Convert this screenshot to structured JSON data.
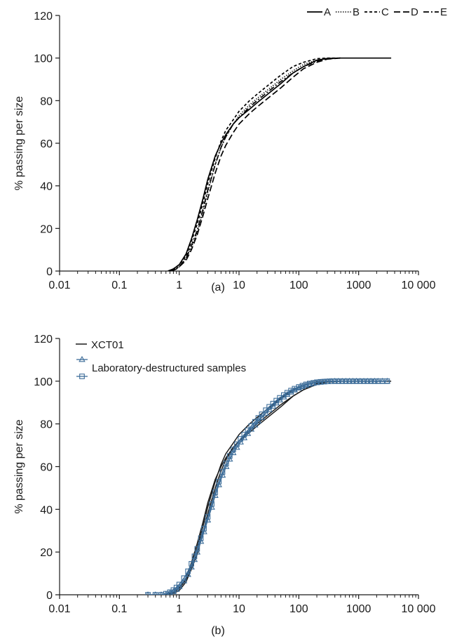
{
  "chart_data": [
    {
      "type": "line",
      "panel_label": "(a)",
      "title": "",
      "xlabel": "",
      "ylabel": "% passing per size",
      "xscale": "log",
      "xlim": [
        0.01,
        10000
      ],
      "ylim": [
        0,
        120
      ],
      "xticks": [
        0.01,
        0.1,
        1,
        10,
        100,
        1000,
        10000
      ],
      "xtick_labels": [
        "0.01",
        "0.1",
        "1",
        "10",
        "100",
        "1000",
        "10 000"
      ],
      "yticks": [
        0,
        20,
        40,
        60,
        80,
        100,
        120
      ],
      "ytick_labels": [
        "0",
        "20",
        "40",
        "60",
        "80",
        "100",
        "120"
      ],
      "grid": false,
      "legend": "top-right",
      "series": [
        {
          "name": "A",
          "dash": "solid",
          "color": "#000000",
          "x": [
            0.65,
            0.8,
            1,
            1.3,
            1.6,
            2,
            2.5,
            3,
            4,
            5,
            6,
            8,
            10,
            15,
            20,
            30,
            50,
            80,
            120,
            200,
            300,
            500,
            1000,
            3500
          ],
          "y": [
            0,
            1,
            3,
            8,
            15,
            24,
            34,
            43,
            54,
            60,
            64,
            69,
            72,
            76,
            79,
            83,
            88,
            93,
            96,
            99,
            99.8,
            100,
            100,
            100
          ]
        },
        {
          "name": "B",
          "dash": "dotted",
          "color": "#000000",
          "x": [
            0.7,
            0.85,
            1,
            1.3,
            1.6,
            2,
            2.5,
            3,
            4,
            5,
            6,
            8,
            10,
            15,
            20,
            30,
            50,
            80,
            120,
            200,
            300,
            500
          ],
          "y": [
            0,
            1,
            2,
            6,
            11,
            18,
            28,
            37,
            50,
            58,
            63,
            69,
            73,
            78,
            81,
            85,
            90,
            94,
            97,
            99,
            99.8,
            100
          ]
        },
        {
          "name": "C",
          "dash": "short-dash",
          "color": "#000000",
          "x": [
            0.65,
            0.8,
            1,
            1.3,
            1.6,
            2,
            2.5,
            3,
            4,
            5,
            6,
            8,
            10,
            15,
            20,
            30,
            50,
            80,
            120,
            200,
            300,
            500
          ],
          "y": [
            0,
            1,
            3,
            7,
            14,
            22,
            32,
            41,
            53,
            61,
            66,
            71,
            75,
            80,
            83,
            87,
            92,
            96,
            98,
            99.7,
            100,
            100
          ]
        },
        {
          "name": "D",
          "dash": "long-dash",
          "color": "#000000",
          "x": [
            0.75,
            0.9,
            1,
            1.3,
            1.6,
            2,
            2.5,
            3,
            4,
            5,
            6,
            8,
            10,
            15,
            20,
            30,
            50,
            80,
            120,
            200,
            300,
            500
          ],
          "y": [
            0,
            1,
            2,
            5,
            10,
            17,
            26,
            34,
            46,
            54,
            59,
            65,
            69,
            74,
            77,
            81,
            86,
            91,
            95,
            98,
            99.5,
            100
          ]
        },
        {
          "name": "E",
          "dash": "dash-dot",
          "color": "#000000",
          "x": [
            0.7,
            0.85,
            1,
            1.3,
            1.6,
            2,
            2.5,
            3,
            4,
            5,
            6,
            8,
            10,
            15,
            20,
            30,
            50,
            80,
            120,
            200,
            300,
            500
          ],
          "y": [
            0,
            1,
            2,
            6,
            12,
            19,
            29,
            38,
            50,
            58,
            63,
            69,
            72,
            77,
            80,
            84,
            89,
            93,
            96,
            98.5,
            99.6,
            100
          ]
        }
      ]
    },
    {
      "type": "line",
      "panel_label": "(b)",
      "title": "",
      "xlabel": "",
      "ylabel": "% passing per size",
      "xscale": "log",
      "xlim": [
        0.01,
        10000
      ],
      "ylim": [
        0,
        120
      ],
      "xticks": [
        0.01,
        0.1,
        1,
        10,
        100,
        1000,
        10000
      ],
      "xtick_labels": [
        "0.01",
        "0.1",
        "1",
        "10",
        "100",
        "1000",
        "10 000"
      ],
      "yticks": [
        0,
        20,
        40,
        60,
        80,
        100,
        120
      ],
      "ytick_labels": [
        "0",
        "20",
        "40",
        "60",
        "80",
        "100",
        "120"
      ],
      "grid": false,
      "legend": "top-left",
      "legend_entries": [
        "XCT01",
        "Laboratory-destructured samples"
      ],
      "series": [
        {
          "name": "XCT01",
          "color": "#1a1a1a",
          "marker": "none",
          "x": [
            0.65,
            0.8,
            1,
            1.3,
            1.6,
            2,
            2.5,
            3,
            4,
            5,
            6,
            8,
            10,
            15,
            20,
            30,
            50,
            80,
            120,
            200,
            300,
            500,
            1000,
            3500
          ],
          "y": [
            0,
            1,
            3,
            8,
            15,
            24,
            34,
            43,
            54,
            60,
            64,
            69,
            72,
            76,
            79,
            83,
            88,
            93,
            96,
            99,
            99.8,
            100,
            100,
            100
          ]
        },
        {
          "name": "XCT01",
          "color": "#1a1a1a",
          "marker": "none",
          "x": [
            0.65,
            0.8,
            1,
            1.3,
            1.6,
            2,
            2.5,
            3,
            4,
            5,
            6,
            8,
            10,
            15,
            20,
            30,
            50,
            80,
            120,
            200,
            300,
            500
          ],
          "y": [
            0,
            1,
            3,
            7,
            14,
            22,
            32,
            41,
            53,
            61,
            66,
            71,
            75,
            80,
            83,
            87,
            92,
            96,
            98,
            99.7,
            100,
            100
          ]
        },
        {
          "name": "XCT01",
          "color": "#1a1a1a",
          "marker": "none",
          "x": [
            0.7,
            0.85,
            1,
            1.3,
            1.6,
            2,
            2.5,
            3,
            4,
            5,
            6,
            8,
            10,
            15,
            20,
            30,
            50,
            80,
            120,
            200,
            300,
            500
          ],
          "y": [
            0,
            1,
            2,
            6,
            12,
            19,
            29,
            38,
            50,
            58,
            63,
            69,
            72,
            77,
            80,
            84,
            89,
            93,
            96,
            98.5,
            99.6,
            100
          ]
        },
        {
          "name": "Laboratory-destructured samples",
          "color": "#3d6d99",
          "marker": "triangle",
          "x": [
            0.3,
            0.4,
            0.5,
            0.6,
            0.7,
            0.8,
            0.9,
            1.0,
            1.2,
            1.4,
            1.6,
            1.8,
            2.0,
            2.3,
            2.6,
            3.0,
            3.5,
            4.0,
            4.6,
            5.3,
            6.1,
            7.0,
            8.0,
            9.2,
            10.6,
            12.2,
            14,
            16,
            18.5,
            21,
            24,
            28,
            32,
            37,
            42,
            48,
            56,
            64,
            74,
            85,
            100,
            115,
            132,
            152,
            175,
            200,
            230,
            265,
            305,
            350,
            400,
            460,
            530,
            610,
            700,
            800,
            920,
            1060,
            1220,
            1400,
            1600,
            1850,
            2100,
            2500,
            3000
          ],
          "y": [
            0,
            0,
            0,
            0.3,
            0.8,
            1.5,
            2.5,
            3.8,
            6.5,
            9.5,
            13,
            16.5,
            20,
            25,
            29.5,
            35,
            41,
            46.5,
            51.5,
            56,
            60,
            63.5,
            66.5,
            69,
            71.5,
            73.5,
            75.5,
            77.5,
            79.5,
            81.3,
            83,
            85,
            86.7,
            88.3,
            89.8,
            91.2,
            92.6,
            93.8,
            94.9,
            95.9,
            96.8,
            97.5,
            98.1,
            98.6,
            99,
            99.3,
            99.5,
            99.7,
            99.8,
            99.9,
            100,
            100,
            100,
            100,
            100,
            100,
            100,
            100,
            100,
            100,
            100,
            100,
            100,
            100,
            100
          ]
        },
        {
          "name": "Laboratory-destructured samples",
          "color": "#3d6d99",
          "marker": "square",
          "x": [
            0.3,
            0.4,
            0.5,
            0.6,
            0.7,
            0.8,
            0.9,
            1.0,
            1.2,
            1.4,
            1.6,
            1.8,
            2.0,
            2.3,
            2.6,
            3.0,
            3.5,
            4.0,
            4.6,
            5.3,
            6.1,
            7.0,
            8.0,
            9.2,
            10.6,
            12.2,
            14,
            16,
            18.5,
            21,
            24,
            28,
            32,
            37,
            42,
            48,
            56,
            64,
            74,
            85,
            100,
            115,
            132,
            152,
            175,
            200,
            230,
            265,
            305,
            350,
            400,
            460,
            530,
            610,
            700,
            800,
            920,
            1060,
            1220,
            1400,
            1600,
            1850,
            2100,
            2500,
            3000
          ],
          "y": [
            0,
            0,
            0,
            0.5,
            1.2,
            2.2,
            3.4,
            4.8,
            7.8,
            11,
            14.5,
            18,
            21.5,
            26.5,
            31,
            36.5,
            42.5,
            48,
            53,
            57.5,
            61.5,
            65,
            68,
            70.5,
            73,
            75,
            77,
            79,
            81,
            82.8,
            84.5,
            86.4,
            88,
            89.5,
            90.9,
            92.2,
            93.5,
            94.6,
            95.6,
            96.5,
            97.3,
            97.9,
            98.5,
            98.9,
            99.2,
            99.5,
            99.7,
            99.8,
            99.9,
            100,
            100,
            100,
            100,
            100,
            100,
            100,
            100,
            100,
            100,
            100,
            100,
            100,
            100,
            100,
            100
          ]
        }
      ]
    }
  ]
}
